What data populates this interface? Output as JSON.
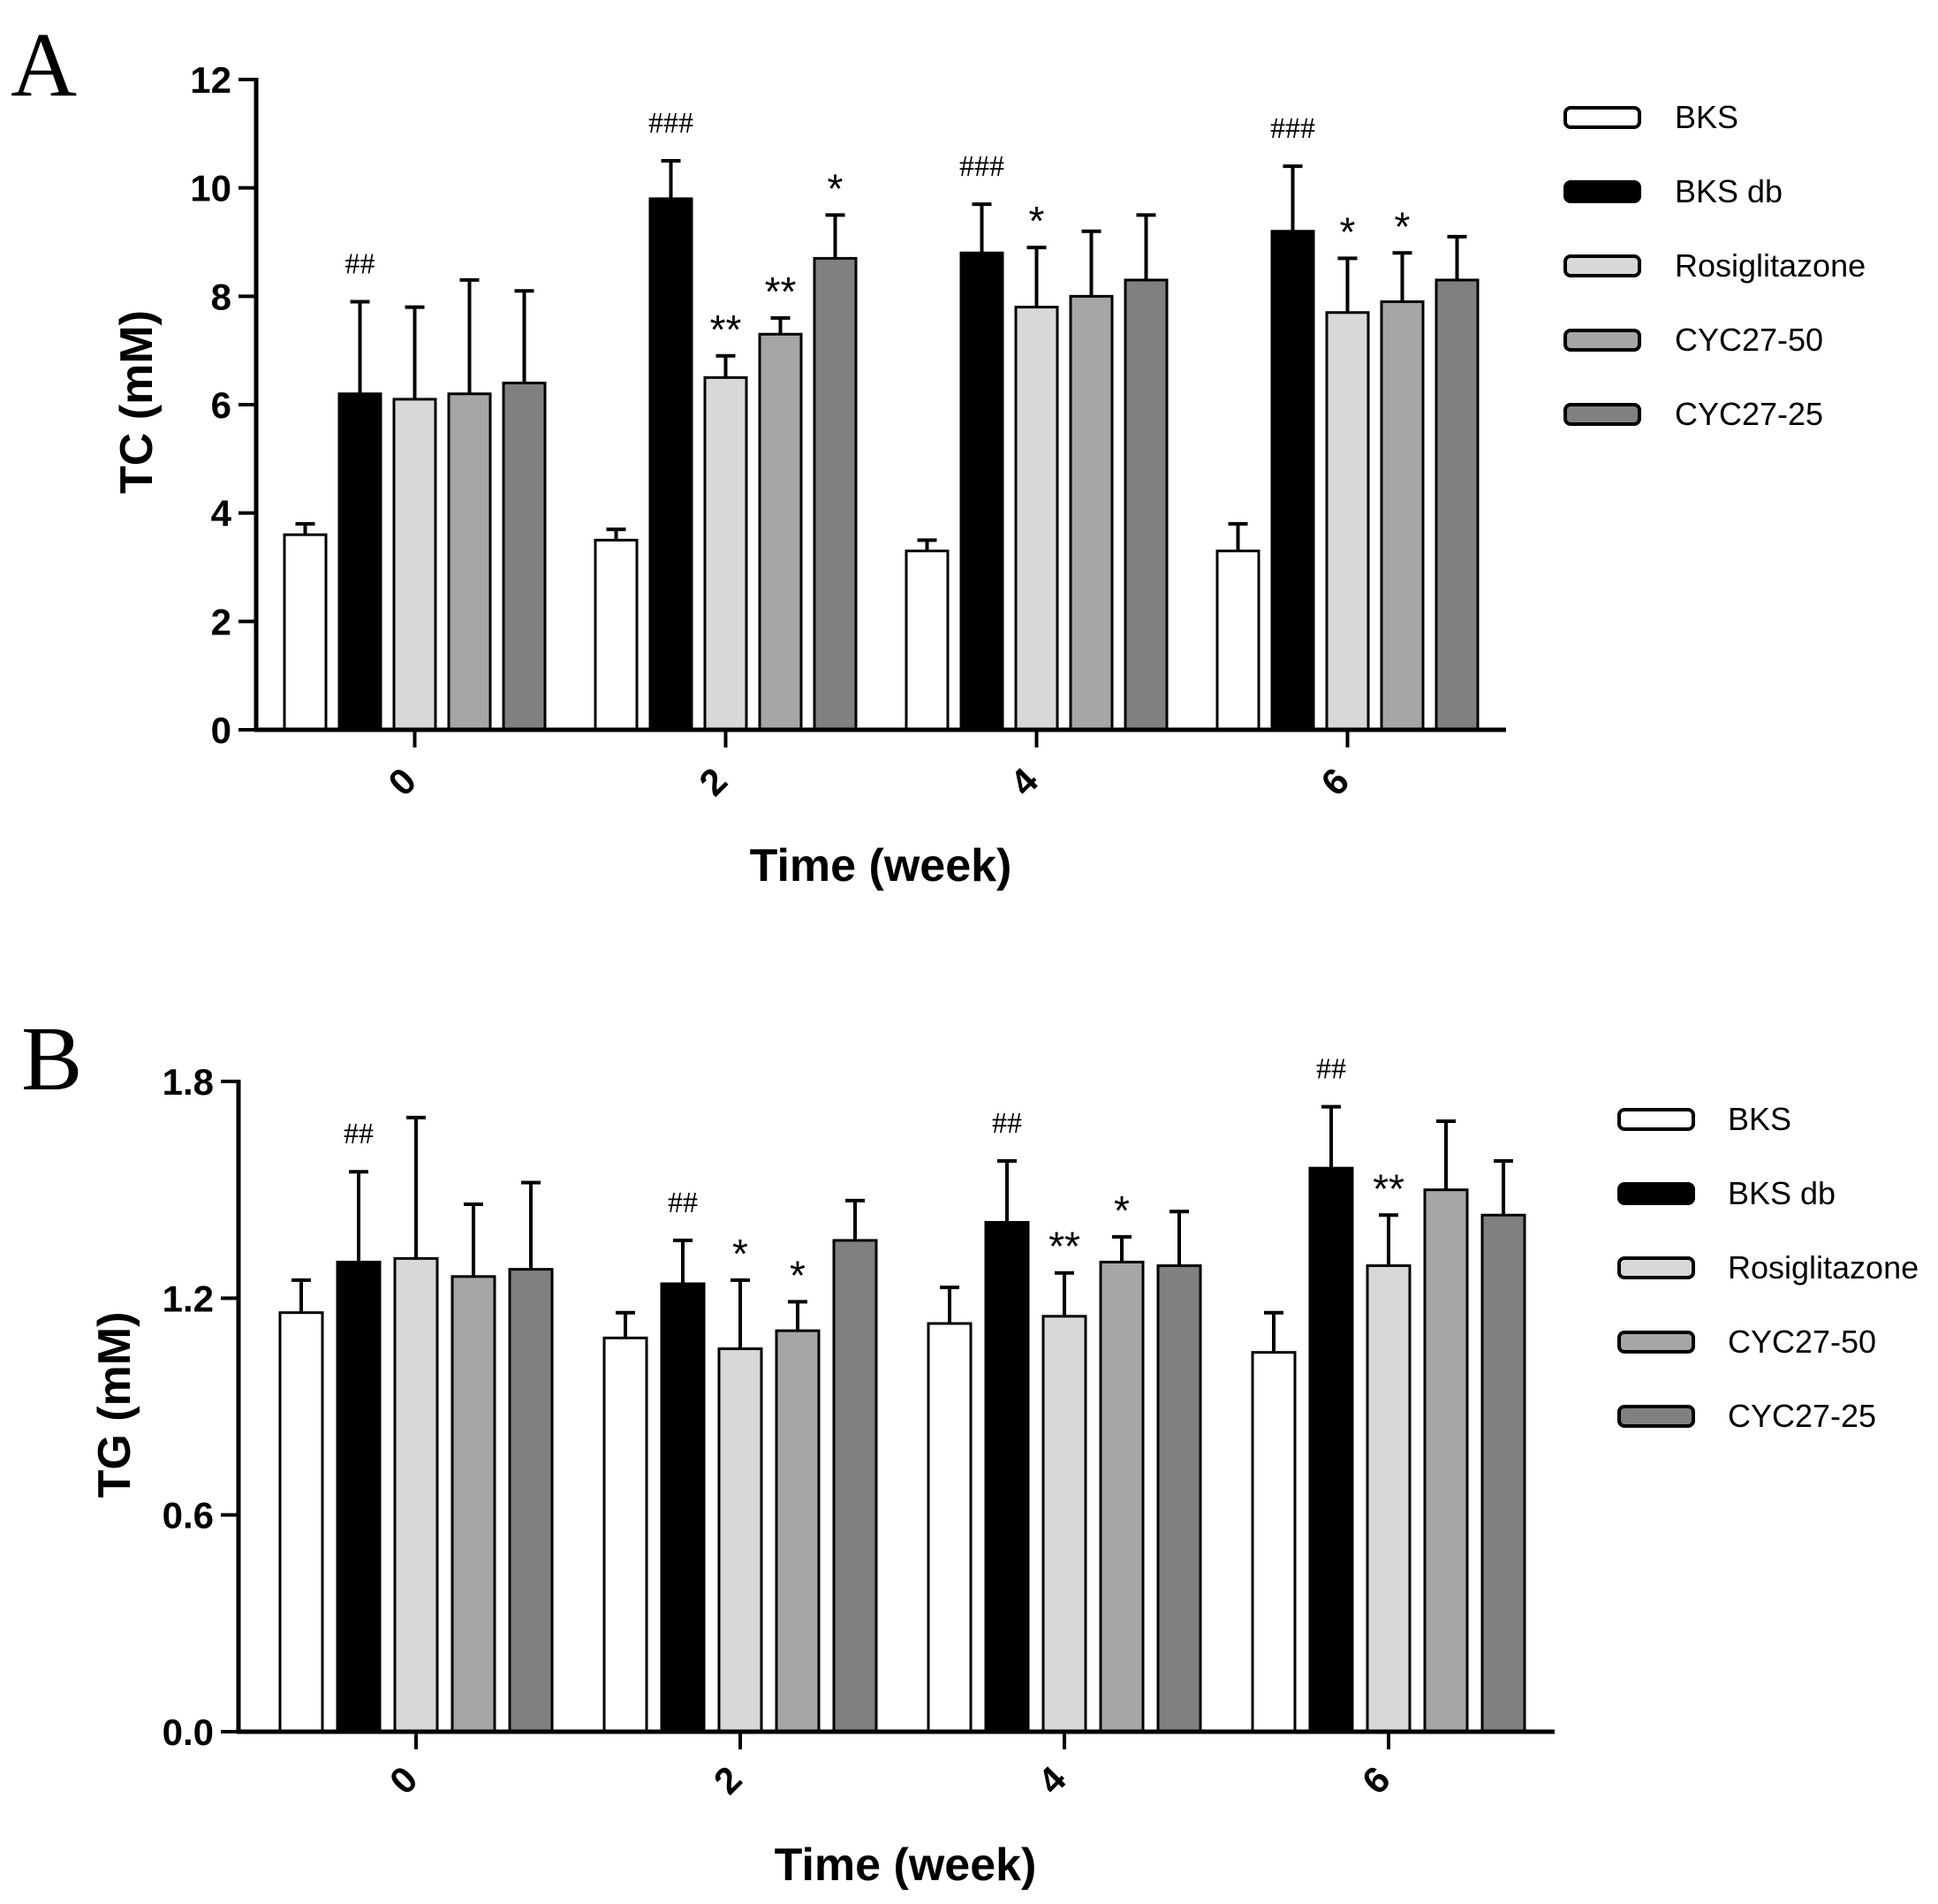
{
  "chart_data": [
    {
      "panel_label": "A",
      "type": "bar",
      "ylabel": "TC (mM)",
      "xlabel": "Time (week)",
      "ylim": [
        0,
        12
      ],
      "yticks": [
        0,
        2,
        4,
        6,
        8,
        10,
        12
      ],
      "ytick_labels": [
        "0",
        "2",
        "4",
        "6",
        "8",
        "10",
        "12"
      ],
      "categories": [
        "0",
        "2",
        "4",
        "6"
      ],
      "series": [
        {
          "name": "BKS",
          "color": "#ffffff",
          "values": [
            3.6,
            3.5,
            3.3,
            3.3
          ],
          "errors": [
            0.2,
            0.2,
            0.2,
            0.5
          ]
        },
        {
          "name": "BKS db",
          "color": "#000000",
          "values": [
            6.2,
            9.8,
            8.8,
            9.2
          ],
          "errors": [
            1.7,
            0.7,
            0.9,
            1.2
          ]
        },
        {
          "name": "Rosiglitazone",
          "color": "#d8d8d8",
          "values": [
            6.1,
            6.5,
            7.8,
            7.7
          ],
          "errors": [
            1.7,
            0.4,
            1.1,
            1.0
          ]
        },
        {
          "name": "CYC27-50",
          "color": "#a6a6a6",
          "values": [
            6.2,
            7.3,
            8.0,
            7.9
          ],
          "errors": [
            2.1,
            0.3,
            1.2,
            0.9
          ]
        },
        {
          "name": "CYC27-25",
          "color": "#808080",
          "values": [
            6.4,
            8.7,
            8.3,
            8.3
          ],
          "errors": [
            1.7,
            0.8,
            1.2,
            0.8
          ]
        }
      ],
      "annotations": [
        {
          "category": 0,
          "series": 1,
          "text": "##",
          "kind": "hash"
        },
        {
          "category": 1,
          "series": 1,
          "text": "###",
          "kind": "hash"
        },
        {
          "category": 1,
          "series": 2,
          "text": "**",
          "kind": "star"
        },
        {
          "category": 1,
          "series": 3,
          "text": "**",
          "kind": "star"
        },
        {
          "category": 1,
          "series": 4,
          "text": "*",
          "kind": "star"
        },
        {
          "category": 2,
          "series": 1,
          "text": "###",
          "kind": "hash"
        },
        {
          "category": 2,
          "series": 2,
          "text": "*",
          "kind": "star"
        },
        {
          "category": 3,
          "series": 1,
          "text": "###",
          "kind": "hash"
        },
        {
          "category": 3,
          "series": 2,
          "text": "*",
          "kind": "star"
        },
        {
          "category": 3,
          "series": 3,
          "text": "*",
          "kind": "star"
        }
      ]
    },
    {
      "panel_label": "B",
      "type": "bar",
      "ylabel": "TG (mM)",
      "xlabel": "Time (week)",
      "ylim": [
        0,
        1.8
      ],
      "yticks": [
        0,
        0.6,
        1.2,
        1.8
      ],
      "ytick_labels": [
        "0.0",
        "0.6",
        "1.2",
        "1.8"
      ],
      "categories": [
        "0",
        "2",
        "4",
        "6"
      ],
      "series": [
        {
          "name": "BKS",
          "color": "#ffffff",
          "values": [
            1.16,
            1.09,
            1.13,
            1.05
          ],
          "errors": [
            0.09,
            0.07,
            0.1,
            0.11
          ]
        },
        {
          "name": "BKS db",
          "color": "#000000",
          "values": [
            1.3,
            1.24,
            1.41,
            1.56
          ],
          "errors": [
            0.25,
            0.12,
            0.17,
            0.17
          ]
        },
        {
          "name": "Rosiglitazone",
          "color": "#d8d8d8",
          "values": [
            1.31,
            1.06,
            1.15,
            1.29
          ],
          "errors": [
            0.39,
            0.19,
            0.12,
            0.14
          ]
        },
        {
          "name": "CYC27-50",
          "color": "#a6a6a6",
          "values": [
            1.26,
            1.11,
            1.3,
            1.5
          ],
          "errors": [
            0.2,
            0.08,
            0.07,
            0.19
          ]
        },
        {
          "name": "CYC27-25",
          "color": "#808080",
          "values": [
            1.28,
            1.36,
            1.29,
            1.43
          ],
          "errors": [
            0.24,
            0.11,
            0.15,
            0.15
          ]
        }
      ],
      "annotations": [
        {
          "category": 0,
          "series": 1,
          "text": "##",
          "kind": "hash"
        },
        {
          "category": 1,
          "series": 1,
          "text": "##",
          "kind": "hash"
        },
        {
          "category": 1,
          "series": 2,
          "text": "*",
          "kind": "star"
        },
        {
          "category": 1,
          "series": 3,
          "text": "*",
          "kind": "star"
        },
        {
          "category": 2,
          "series": 1,
          "text": "##",
          "kind": "hash"
        },
        {
          "category": 2,
          "series": 2,
          "text": "**",
          "kind": "star"
        },
        {
          "category": 2,
          "series": 3,
          "text": "*",
          "kind": "star"
        },
        {
          "category": 3,
          "series": 1,
          "text": "##",
          "kind": "hash"
        },
        {
          "category": 3,
          "series": 2,
          "text": "**",
          "kind": "star"
        }
      ]
    }
  ]
}
